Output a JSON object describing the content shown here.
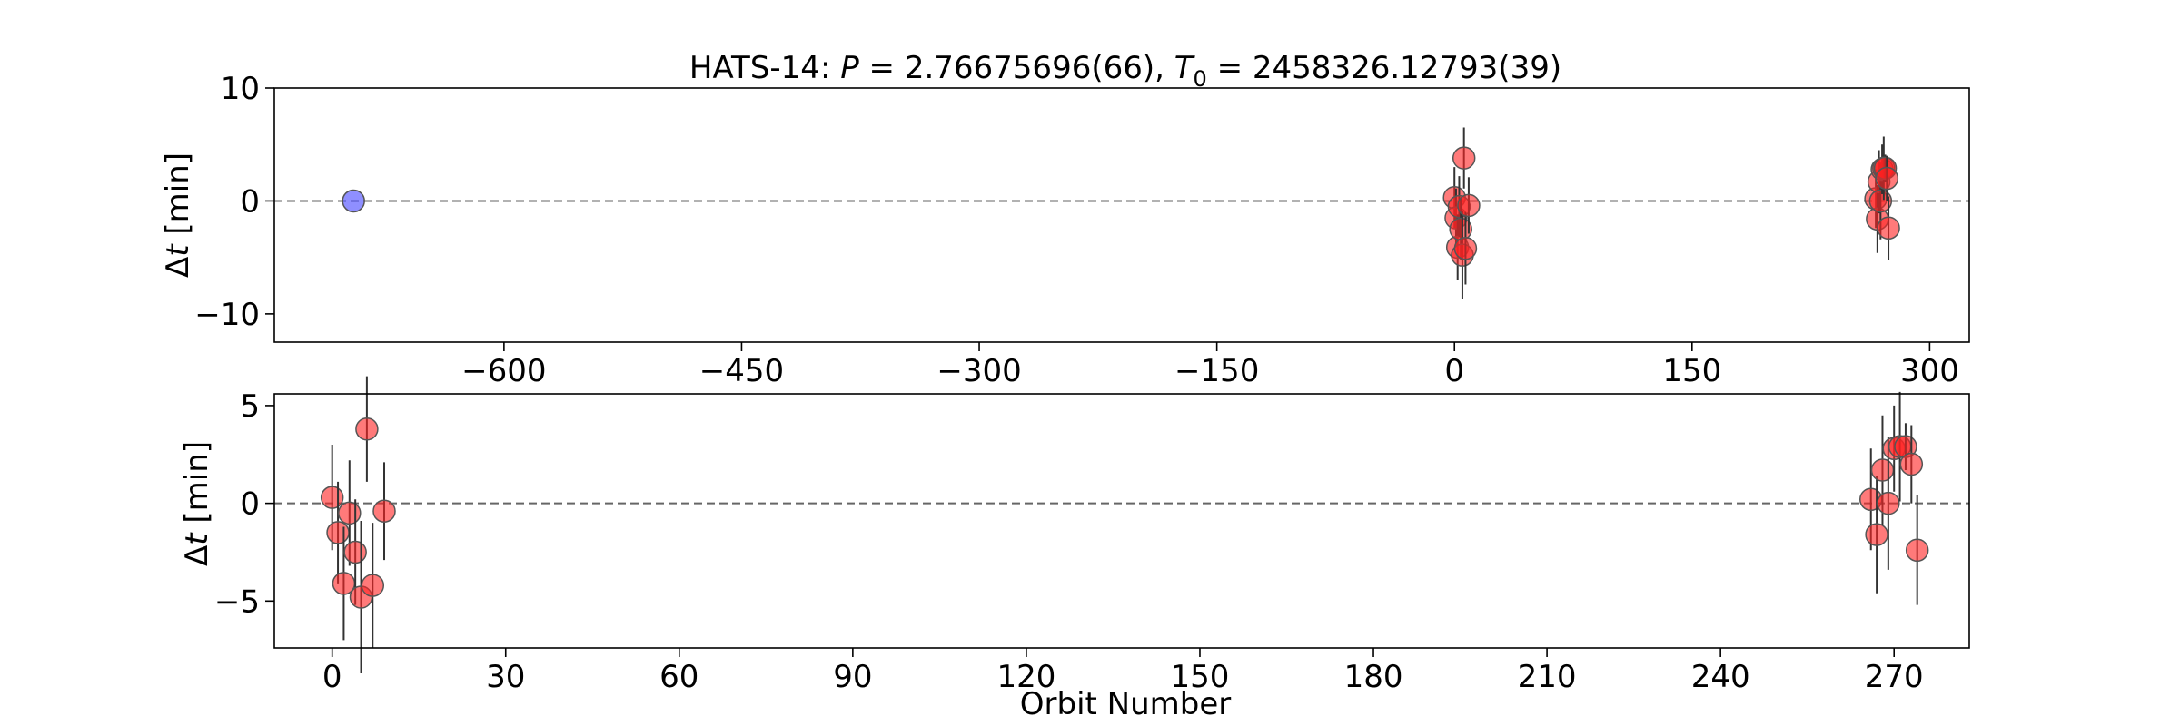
{
  "chart_data": [
    {
      "type": "scatter",
      "title_parts": {
        "prefix": "HATS-14: ",
        "p_symbol": "P",
        "p_value": " = 2.76675696(66), ",
        "t_symbol": "T",
        "t_sub": "0",
        "t_value": " = 2458326.12793(39)"
      },
      "xlabel": "",
      "ylabel_delta": "Δ",
      "ylabel_var": "t",
      "ylabel_unit": " [min]",
      "xlim": [
        -745,
        325
      ],
      "ylim": [
        -12.5,
        10
      ],
      "xticks": [
        -600,
        -450,
        -300,
        -150,
        0,
        150,
        300
      ],
      "yticks": [
        10,
        0,
        -10
      ],
      "reference_line_y": 0,
      "series": [
        {
          "color": "#4444ff",
          "points": [
            {
              "x": -695,
              "y": 0.0,
              "err": 0.0
            }
          ]
        },
        {
          "color": "#ff2222",
          "points": [
            {
              "x": 0,
              "y": 0.3,
              "err": 2.7
            },
            {
              "x": 1,
              "y": -1.5,
              "err": 2.6
            },
            {
              "x": 2,
              "y": -4.1,
              "err": 2.9
            },
            {
              "x": 3,
              "y": -0.5,
              "err": 2.7
            },
            {
              "x": 4,
              "y": -2.5,
              "err": 2.7
            },
            {
              "x": 5,
              "y": -4.8,
              "err": 3.9
            },
            {
              "x": 6,
              "y": 3.8,
              "err": 2.7
            },
            {
              "x": 7,
              "y": -4.2,
              "err": 3.2
            },
            {
              "x": 9,
              "y": -0.4,
              "err": 2.5
            },
            {
              "x": 266,
              "y": 0.2,
              "err": 2.6
            },
            {
              "x": 267,
              "y": -1.6,
              "err": 3.0
            },
            {
              "x": 268,
              "y": 1.7,
              "err": 2.8
            },
            {
              "x": 269,
              "y": 0.0,
              "err": 3.4
            },
            {
              "x": 270,
              "y": 2.8,
              "err": 2.2
            },
            {
              "x": 271,
              "y": 2.9,
              "err": 2.8
            },
            {
              "x": 272,
              "y": 2.9,
              "err": 1.2
            },
            {
              "x": 273,
              "y": 2.0,
              "err": 2.0
            },
            {
              "x": 274,
              "y": -2.4,
              "err": 2.8
            }
          ]
        }
      ]
    },
    {
      "type": "scatter",
      "xlabel": "Orbit Number",
      "ylabel_delta": "Δ",
      "ylabel_var": "t",
      "ylabel_unit": " [min]",
      "xlim": [
        -10,
        283
      ],
      "ylim": [
        -7.4,
        5.6
      ],
      "xticks": [
        0,
        30,
        60,
        90,
        120,
        150,
        180,
        210,
        240,
        270
      ],
      "yticks": [
        5,
        0,
        -5
      ],
      "reference_line_y": 0,
      "series": [
        {
          "color": "#ff2222",
          "points": [
            {
              "x": 0,
              "y": 0.3,
              "err": 2.7
            },
            {
              "x": 1,
              "y": -1.5,
              "err": 2.6
            },
            {
              "x": 2,
              "y": -4.1,
              "err": 2.9
            },
            {
              "x": 3,
              "y": -0.5,
              "err": 2.7
            },
            {
              "x": 4,
              "y": -2.5,
              "err": 2.7
            },
            {
              "x": 5,
              "y": -4.8,
              "err": 3.9
            },
            {
              "x": 6,
              "y": 3.8,
              "err": 2.7
            },
            {
              "x": 7,
              "y": -4.2,
              "err": 3.2
            },
            {
              "x": 9,
              "y": -0.4,
              "err": 2.5
            },
            {
              "x": 266,
              "y": 0.2,
              "err": 2.6
            },
            {
              "x": 267,
              "y": -1.6,
              "err": 3.0
            },
            {
              "x": 268,
              "y": 1.7,
              "err": 2.8
            },
            {
              "x": 269,
              "y": 0.0,
              "err": 3.4
            },
            {
              "x": 270,
              "y": 2.8,
              "err": 2.2
            },
            {
              "x": 271,
              "y": 2.9,
              "err": 2.8
            },
            {
              "x": 272,
              "y": 2.9,
              "err": 1.2
            },
            {
              "x": 273,
              "y": 2.0,
              "err": 2.0
            },
            {
              "x": 274,
              "y": -2.4,
              "err": 2.8
            }
          ]
        }
      ]
    }
  ]
}
